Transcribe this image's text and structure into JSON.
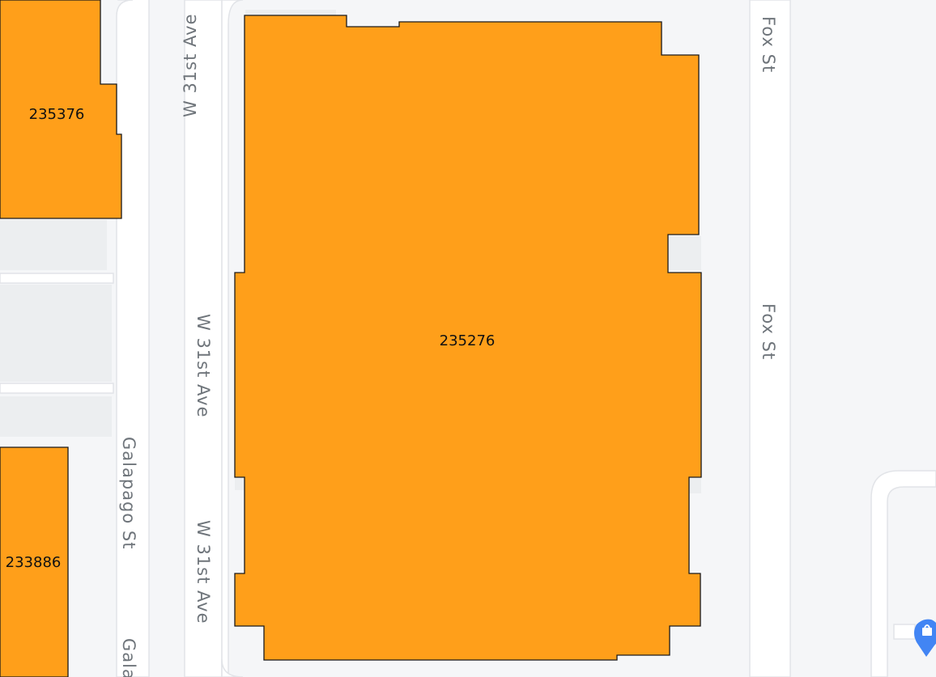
{
  "streets": {
    "w31_top": "W 31st Ave",
    "w31_mid": "W 31st Ave",
    "w31_bottom": "W 31st Ave",
    "fox_top": "Fox St",
    "fox_mid": "Fox St",
    "galapago": "Galapago St",
    "galapago_partial": "Gala"
  },
  "parcels": {
    "top_left": "235376",
    "center": "235276",
    "bottom_left": "233886"
  },
  "icons": {
    "poi": "shopping-bag-pin-icon"
  },
  "colors": {
    "parcel_fill": "#ff9f1a",
    "road": "#ffffff",
    "background": "#f5f6f8",
    "poi_pin": "#4285f4"
  }
}
